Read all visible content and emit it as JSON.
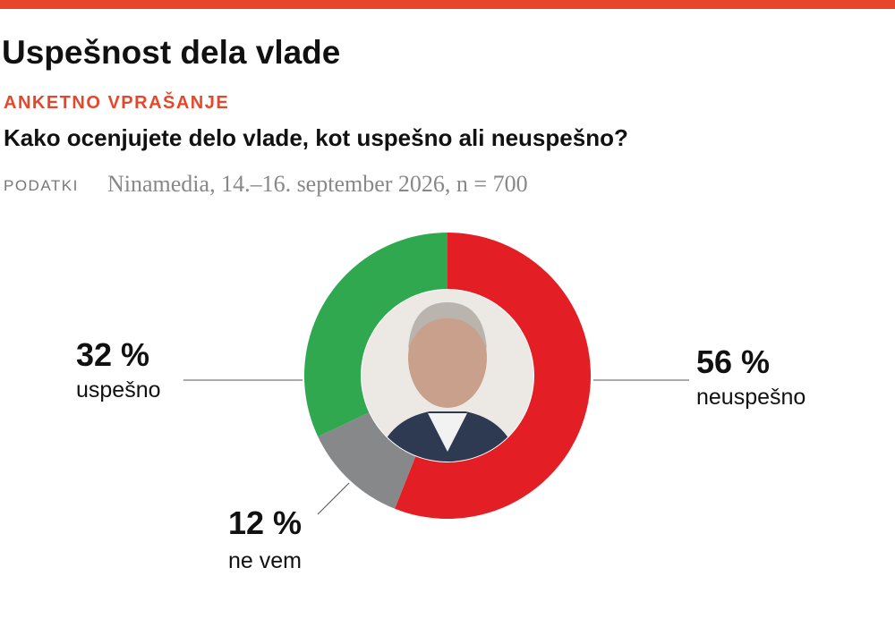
{
  "chart_data": {
    "type": "pie",
    "title": "Uspešnost dela vlade",
    "kicker": "ANKETNO VPRAŠANJE",
    "subtitle": "Kako ocenjujete delo vlade, kot uspešno ali neuspešno?",
    "source_label": "PODATKI",
    "source": "Ninamedia, 14.–16. september 2026, n = 700",
    "categories": [
      "neuspešno",
      "ne vem",
      "uspešno"
    ],
    "values": [
      56,
      12,
      32
    ],
    "value_labels": [
      "56 %",
      "12 %",
      "32 %"
    ],
    "colors": [
      "#e31e24",
      "#87888a",
      "#2fa84f"
    ],
    "donut": true
  }
}
